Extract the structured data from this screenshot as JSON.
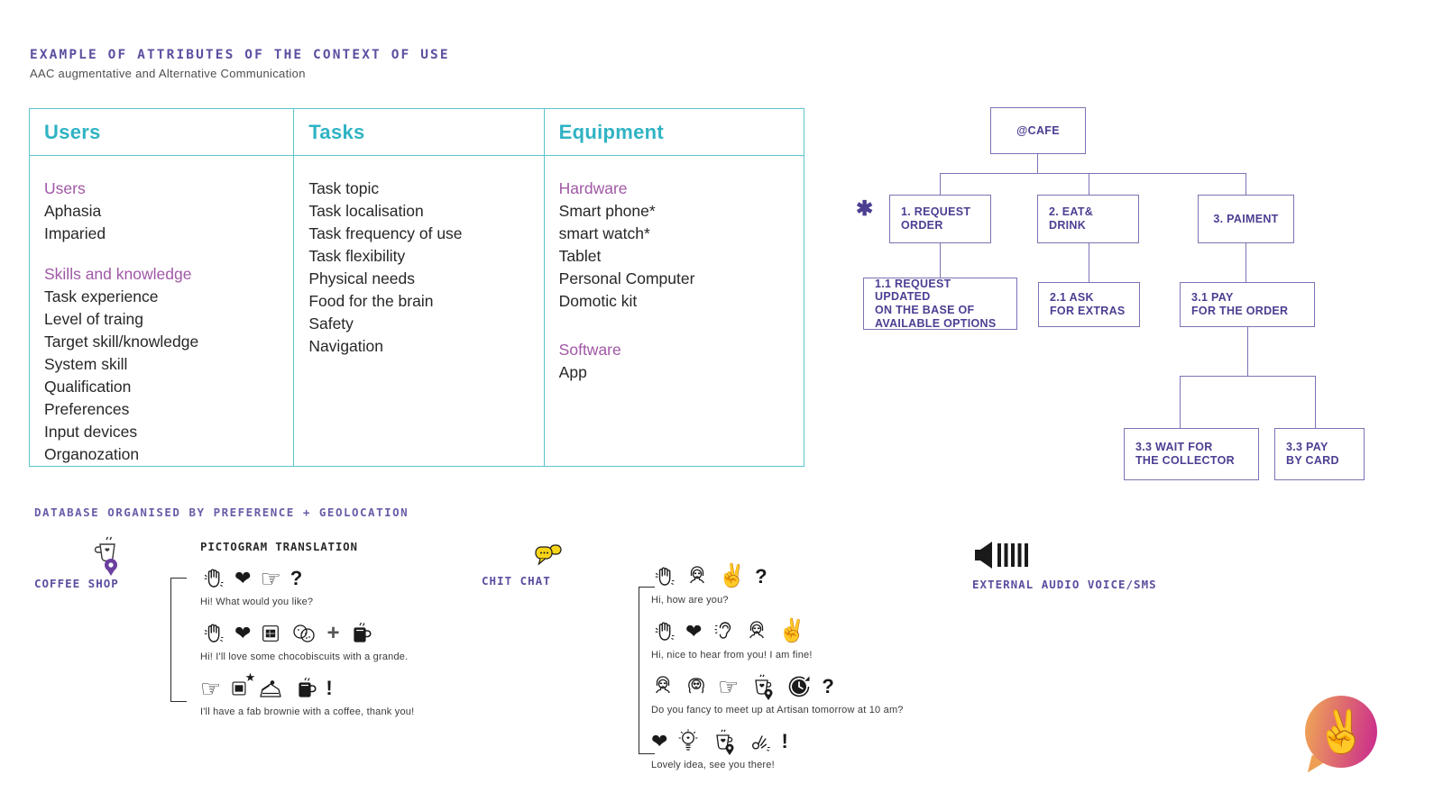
{
  "page": {
    "title": "EXAMPLE OF ATTRIBUTES OF THE CONTEXT OF USE",
    "subtitle": "AAC augmentative and Alternative Communication"
  },
  "table": {
    "columns": [
      {
        "header": "Users",
        "groups": [
          {
            "label": "Users",
            "items": [
              "Aphasia",
              "Imparied"
            ]
          },
          {
            "label": "Skills and knowledge",
            "items": [
              "Task experience",
              "Level of traing",
              "Target skill/knowledge",
              "System skill",
              "Qualification",
              "Preferences",
              "Input devices",
              "Organozation"
            ]
          }
        ]
      },
      {
        "header": "Tasks",
        "groups": [
          {
            "label": "",
            "items": [
              "Task topic",
              "Task localisation",
              "Task frequency of use",
              "Task flexibility",
              "Physical needs",
              "Food for the brain",
              "Safety",
              "Navigation"
            ]
          }
        ]
      },
      {
        "header": "Equipment",
        "groups": [
          {
            "label": "Hardware",
            "items": [
              "Smart phone*",
              "smart watch*",
              "Tablet",
              "Personal Computer",
              "Domotic kit"
            ]
          },
          {
            "label": "Software",
            "items": [
              "App"
            ]
          }
        ]
      }
    ]
  },
  "flowchart": {
    "marker": "✱",
    "root": "@CAFE",
    "n1": {
      "l1": "1. REQUEST",
      "l2": "ORDER"
    },
    "n2": {
      "l1": "2. EAT&",
      "l2": "DRINK"
    },
    "n3": {
      "l1": "3. PAIMENT"
    },
    "n11": {
      "l1": "1.1 REQUEST UPDATED",
      "l2": "ON THE BASE OF",
      "l3": "AVAILABLE OPTIONS"
    },
    "n21": {
      "l1": "2.1 ASK",
      "l2": "FOR EXTRAS"
    },
    "n31": {
      "l1": "3.1 PAY",
      "l2": "FOR THE ORDER"
    },
    "n33a": {
      "l1": "3.3 WAIT FOR",
      "l2": "THE COLLECTOR"
    },
    "n33b": {
      "l1": "3.3 PAY",
      "l2": "BY CARD"
    }
  },
  "bottom": {
    "heading": "DATABASE ORGANISED BY PREFERENCE + GEOLOCATION",
    "coffee_shop_label": "COFFEE SHOP",
    "pictogram_title": "PICTOGRAM TRANSLATION",
    "chit_chat_label": "CHIT CHAT",
    "external_label": "EXTERNAL AUDIO VOICE/SMS",
    "icons": {
      "coffee_shop": "coffee-cup-with-location-pin",
      "chit_chat": "chat-bubbles",
      "external": "speaker-with-bars",
      "logo": "peace-hand-speech-bubble"
    },
    "coffee_rows": [
      {
        "icons": [
          "wave-hand",
          "heart",
          "point-finger",
          "question"
        ],
        "caption": "Hi! What would you like?"
      },
      {
        "icons": [
          "wave-hand",
          "heart",
          "chocolate",
          "cookies",
          "plus",
          "coffee-mug"
        ],
        "caption": "Hi! I'll love some chocobiscuits with a grande."
      },
      {
        "icons": [
          "point-finger",
          "chocolate-star",
          "cake",
          "coffee-mug",
          "exclamation"
        ],
        "caption": "I'll have a fab brownie with a coffee, thank you!"
      }
    ],
    "chat_rows": [
      {
        "icons": [
          "wave-hand",
          "girl",
          "peace-hand",
          "question"
        ],
        "caption": "Hi, how are you?"
      },
      {
        "icons": [
          "wave-hand",
          "heart",
          "ear",
          "girl",
          "peace-hand"
        ],
        "caption": "Hi, nice to hear from you! I am fine!"
      },
      {
        "icons": [
          "girl",
          "girl2",
          "point-finger",
          "coffee-location",
          "clock",
          "question"
        ],
        "caption": "Do you fancy to meet up at Artisan tomorrow at 10 am?"
      },
      {
        "icons": [
          "heart",
          "lightbulb",
          "coffee-location",
          "ok-hand",
          "exclamation"
        ],
        "caption": "Lovely idea, see you there!"
      }
    ]
  },
  "colors": {
    "teal_border": "#5cc5ce",
    "teal_header": "#2fb3c4",
    "purple_subhead": "#a058a6",
    "flow_text": "#4b3f92",
    "flow_border": "#7d72b5",
    "mono_purple": "#6a5ca8",
    "logo_orange": "#efa356",
    "logo_pink": "#cb2d8c",
    "logo_hand": "#d9e021",
    "chat_yellow": "#f8d517"
  }
}
